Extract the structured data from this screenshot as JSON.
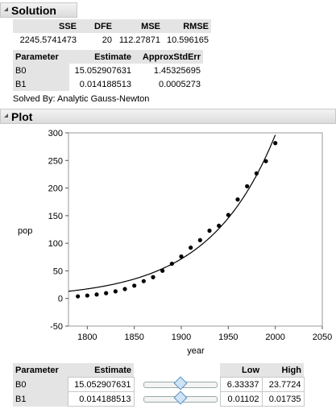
{
  "solution": {
    "title": "Solution",
    "stats_headers": [
      "SSE",
      "DFE",
      "MSE",
      "RMSE"
    ],
    "stats_values": [
      "2245.5741473",
      "20",
      "112.27871",
      "10.596165"
    ],
    "param_headers": [
      "Parameter",
      "Estimate",
      "ApproxStdErr"
    ],
    "params": [
      {
        "name": "B0",
        "estimate": "15.052907631",
        "stderr": "1.45325695"
      },
      {
        "name": "B1",
        "estimate": "0.014188513",
        "stderr": "0.0005273"
      }
    ],
    "solved_by": "Solved By: Analytic Gauss-Newton"
  },
  "plot": {
    "title": "Plot",
    "colors": {
      "points": "#000000",
      "curve": "#000000",
      "axis": "#555555"
    }
  },
  "chart_data": {
    "type": "scatter",
    "xlabel": "year",
    "ylabel": "pop",
    "xlim": [
      1780,
      2050
    ],
    "ylim": [
      -50,
      300
    ],
    "xticks": [
      1800,
      1850,
      1900,
      1950,
      2000,
      2050
    ],
    "yticks": [
      -50,
      0,
      50,
      100,
      150,
      200,
      250,
      300
    ],
    "x_tick_labels": [
      "1800",
      "1850",
      "1900",
      "1950",
      "2000",
      "2050"
    ],
    "y_tick_labels": [
      "-50",
      "0",
      "50",
      "100",
      "150",
      "200",
      "250",
      "300"
    ],
    "points": [
      {
        "x": 1790,
        "y": 3.9
      },
      {
        "x": 1800,
        "y": 5.3
      },
      {
        "x": 1810,
        "y": 7.2
      },
      {
        "x": 1820,
        "y": 9.6
      },
      {
        "x": 1830,
        "y": 12.9
      },
      {
        "x": 1840,
        "y": 17.1
      },
      {
        "x": 1850,
        "y": 23.2
      },
      {
        "x": 1860,
        "y": 31.4
      },
      {
        "x": 1870,
        "y": 38.6
      },
      {
        "x": 1880,
        "y": 50.2
      },
      {
        "x": 1890,
        "y": 62.9
      },
      {
        "x": 1900,
        "y": 76.0
      },
      {
        "x": 1910,
        "y": 92.0
      },
      {
        "x": 1920,
        "y": 105.7
      },
      {
        "x": 1930,
        "y": 122.8
      },
      {
        "x": 1940,
        "y": 131.7
      },
      {
        "x": 1950,
        "y": 151.3
      },
      {
        "x": 1960,
        "y": 179.3
      },
      {
        "x": 1970,
        "y": 203.3
      },
      {
        "x": 1980,
        "y": 226.5
      },
      {
        "x": 1990,
        "y": 248.7
      },
      {
        "x": 2000,
        "y": 281.4
      }
    ],
    "curve": {
      "model": "B0*exp(B1*(year-1790))",
      "B0": 15.052907631,
      "B1": 0.014188513
    }
  },
  "profiler": {
    "headers": [
      "Parameter",
      "Estimate",
      "Low",
      "High"
    ],
    "rows": [
      {
        "name": "B0",
        "estimate": "15.052907631",
        "low": "6.33337",
        "high": "23.7724",
        "slider": 0.51
      },
      {
        "name": "B1",
        "estimate": "0.014188513",
        "low": "0.01102",
        "high": "0.01735",
        "slider": 0.5
      }
    ]
  }
}
